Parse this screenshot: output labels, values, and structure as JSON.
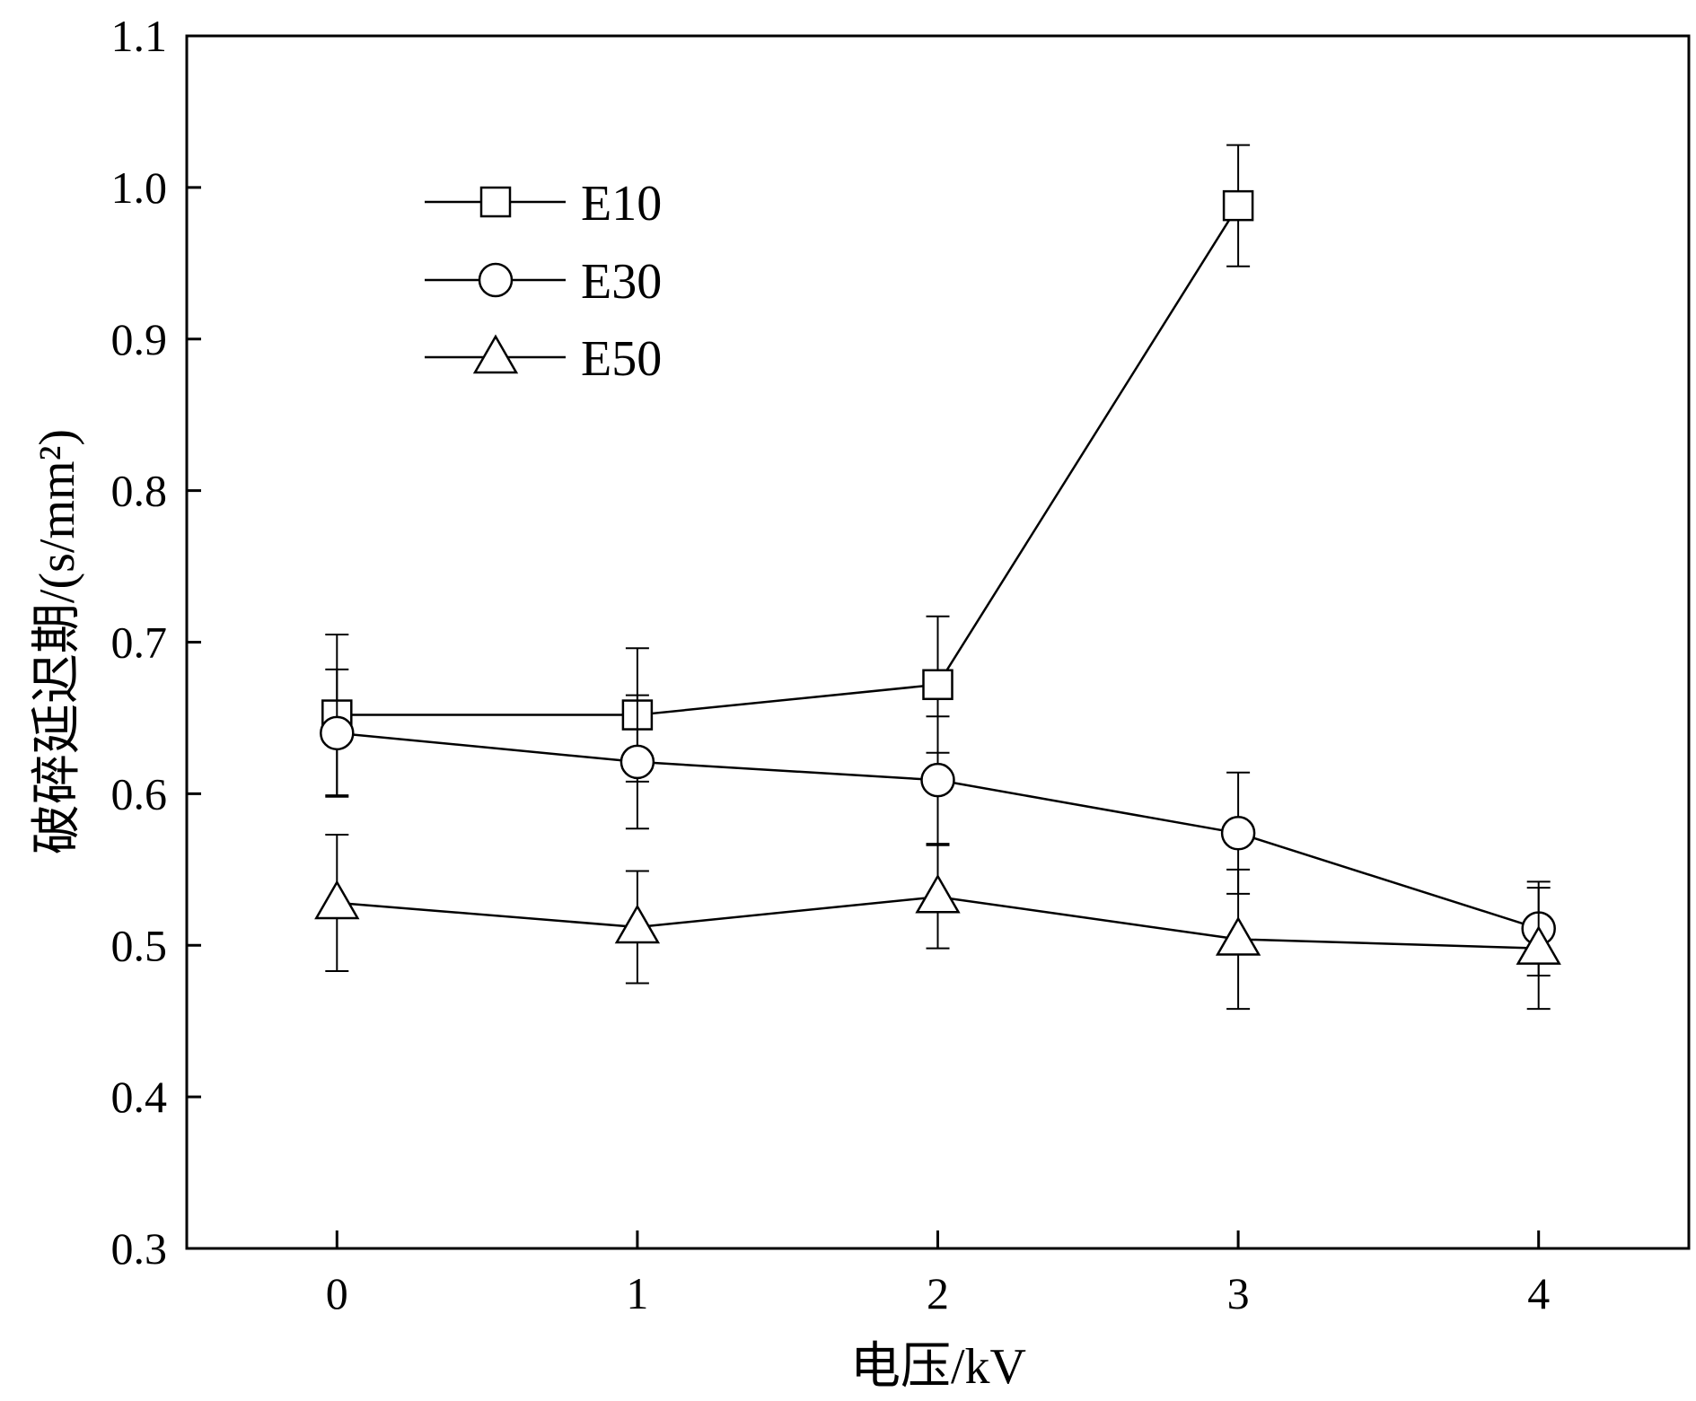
{
  "chart_data": {
    "type": "line",
    "xlabel": "电压/kV",
    "ylabel": "破碎延迟期/(s/mm²)",
    "xlim": [
      -0.5,
      4.5
    ],
    "ylim": [
      0.3,
      1.1
    ],
    "x_ticks": [
      "0",
      "1",
      "2",
      "3",
      "4"
    ],
    "y_ticks": [
      "0.3",
      "0.4",
      "0.5",
      "0.6",
      "0.7",
      "0.8",
      "0.9",
      "1.0",
      "1.1"
    ],
    "grid": false,
    "legend_position": "top-left",
    "x": [
      0,
      1,
      2,
      3,
      4
    ],
    "series": [
      {
        "name": "E10",
        "marker": "square",
        "values": [
          0.652,
          0.652,
          0.672,
          0.988,
          null
        ],
        "errors": [
          0.053,
          0.044,
          0.045,
          0.04,
          null
        ]
      },
      {
        "name": "E30",
        "marker": "circle",
        "values": [
          0.64,
          0.621,
          0.609,
          0.574,
          0.511
        ],
        "errors": [
          0.042,
          0.044,
          0.042,
          0.04,
          0.031
        ]
      },
      {
        "name": "E50",
        "marker": "triangle",
        "values": [
          0.528,
          0.512,
          0.532,
          0.504,
          0.498
        ],
        "errors": [
          0.045,
          0.037,
          0.034,
          0.046,
          0.04
        ]
      }
    ]
  }
}
